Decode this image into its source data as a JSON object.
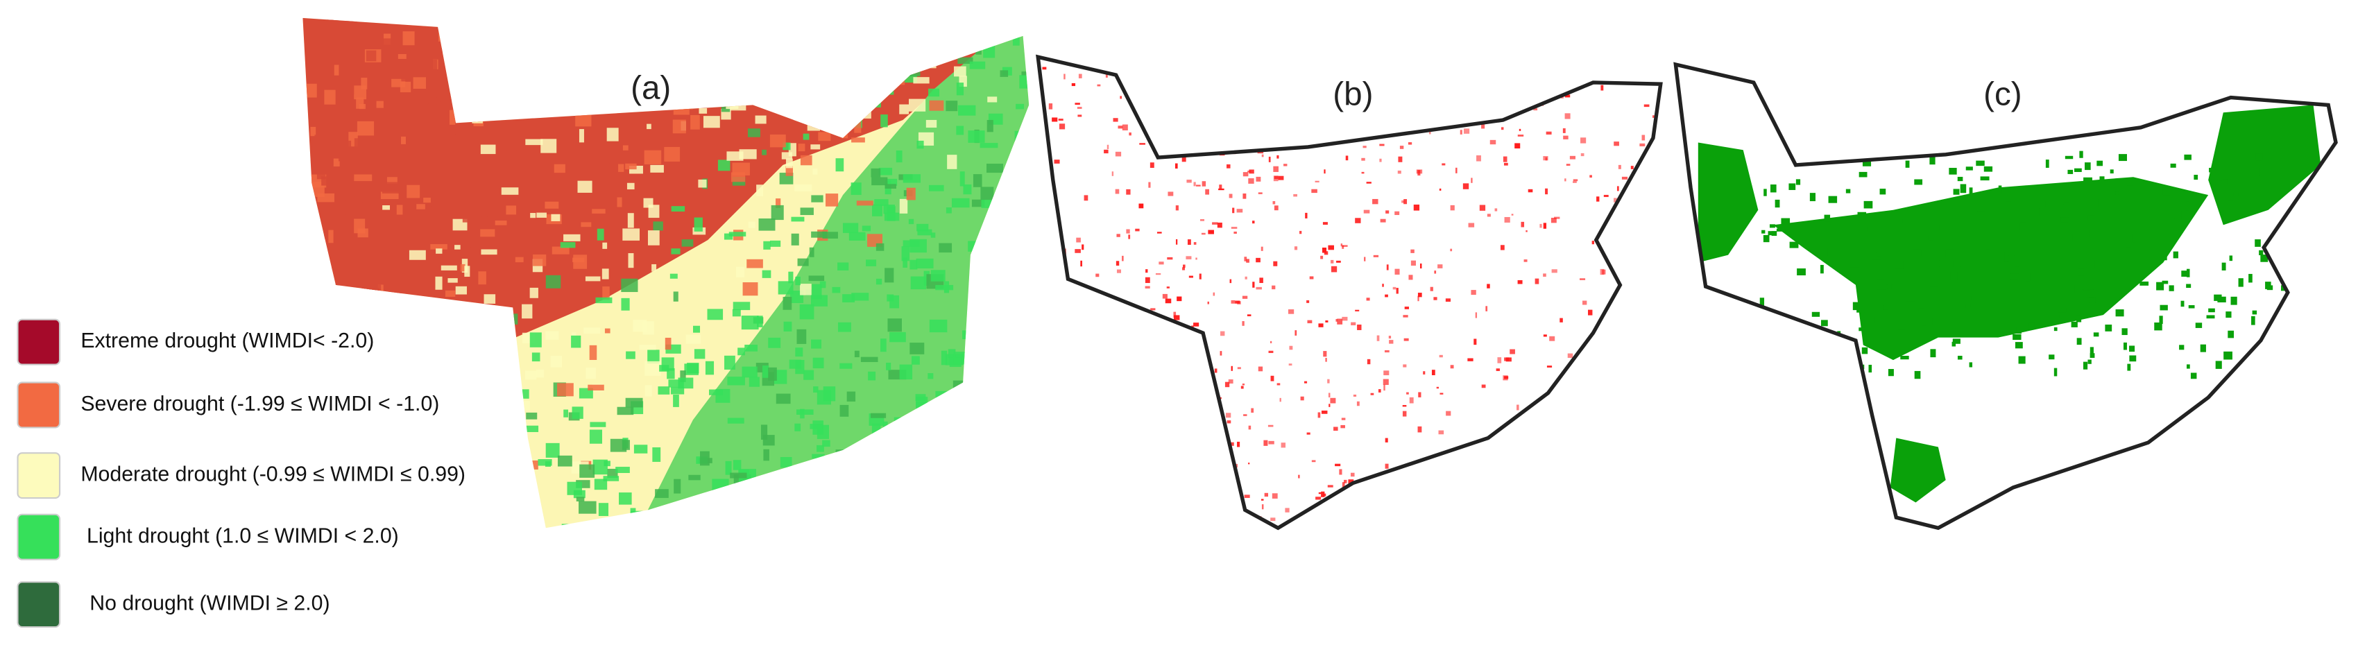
{
  "panels": [
    {
      "label": "(a)"
    },
    {
      "label": "(b)"
    },
    {
      "label": "(c)"
    }
  ],
  "legend": [
    {
      "label": "Extreme drought (WIMDI< -2.0)",
      "color": "#a50a2a"
    },
    {
      "label": "Severe drought (-1.99 ≤ WIMDI < -1.0)",
      "color": "#f26a42"
    },
    {
      "label": "Moderate drought (-0.99 ≤ WIMDI ≤ 0.99)",
      "color": "#fdfbbd"
    },
    {
      "label": "Light drought (1.0 ≤ WIMDI < 2.0)",
      "color": "#36e05a"
    },
    {
      "label": "No drought (WIMDI ≥ 2.0)",
      "color": "#2e6b3c"
    }
  ]
}
